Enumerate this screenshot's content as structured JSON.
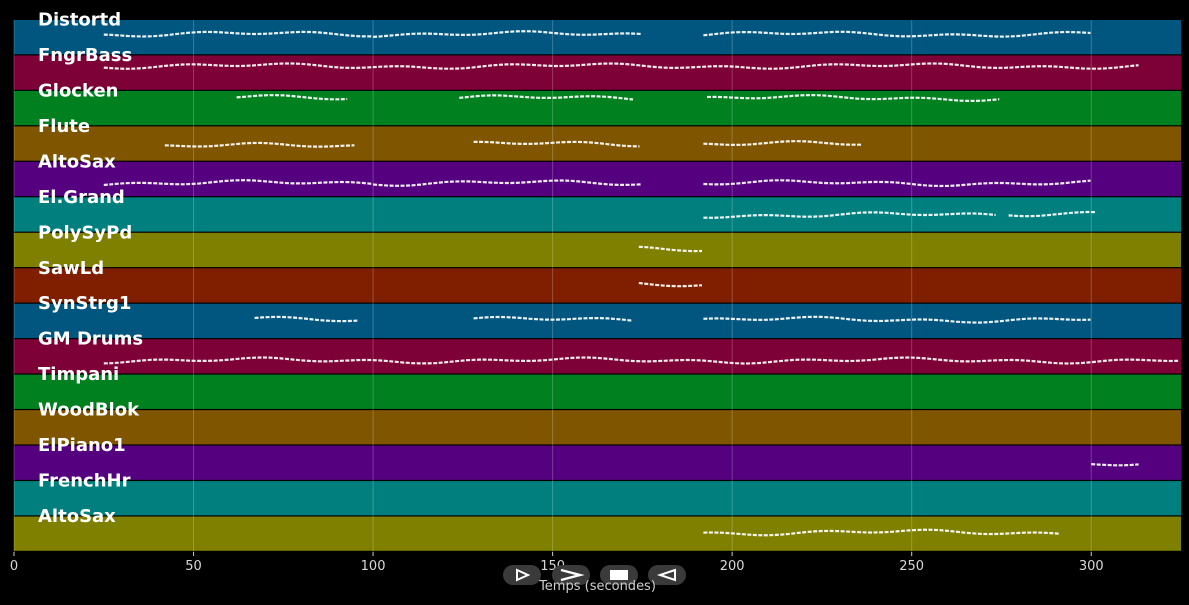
{
  "chart_data": {
    "type": "piano-roll",
    "xlabel": "Temps (secondes)",
    "xlim": [
      0,
      325
    ],
    "x_ticks": [
      0,
      50,
      100,
      150,
      200,
      250,
      300
    ],
    "grid": true,
    "tracks": [
      {
        "name": "Distortd",
        "color": "#00567f",
        "segments": [
          [
            25,
            100,
            0.4
          ],
          [
            100,
            175,
            0.4
          ],
          [
            192,
            300,
            0.4
          ]
        ]
      },
      {
        "name": "FngrBass",
        "color": "#7d0036",
        "segments": [
          [
            25,
            315,
            0.3
          ]
        ]
      },
      {
        "name": "Glocken",
        "color": "#00801f",
        "segments": [
          [
            62,
            95,
            0.2
          ],
          [
            124,
            173,
            0.2
          ],
          [
            193,
            275,
            0.2
          ]
        ]
      },
      {
        "name": "Flute",
        "color": "#7f5500",
        "segments": [
          [
            42,
            97,
            0.55
          ],
          [
            128,
            175,
            0.5
          ],
          [
            192,
            238,
            0.5
          ]
        ]
      },
      {
        "name": "AltoSax",
        "color": "#55007f",
        "segments": [
          [
            25,
            100,
            0.6
          ],
          [
            100,
            175,
            0.6
          ],
          [
            192,
            300,
            0.6
          ]
        ]
      },
      {
        "name": "El.Grand",
        "color": "#007f7f",
        "segments": [
          [
            192,
            275,
            0.5
          ],
          [
            277,
            303,
            0.45
          ]
        ]
      },
      {
        "name": "PolySyPd",
        "color": "#7f7f00",
        "segments": [
          [
            174,
            193,
            0.45
          ]
        ]
      },
      {
        "name": "SawLd",
        "color": "#7f1f00",
        "segments": [
          [
            174,
            193,
            0.45
          ]
        ]
      },
      {
        "name": "SynStrg1",
        "color": "#00567f",
        "segments": [
          [
            67,
            96,
            0.45
          ],
          [
            128,
            174,
            0.45
          ],
          [
            192,
            300,
            0.45
          ]
        ]
      },
      {
        "name": "GM Drums",
        "color": "#7d0036",
        "segments": [
          [
            25,
            325,
            0.6
          ]
        ]
      },
      {
        "name": "Timpani",
        "color": "#00801f",
        "segments": []
      },
      {
        "name": "WoodBlok",
        "color": "#7f5500",
        "segments": []
      },
      {
        "name": "ElPiano1",
        "color": "#55007f",
        "segments": [
          [
            300,
            315,
            0.5
          ]
        ]
      },
      {
        "name": "FrenchHr",
        "color": "#007f7f",
        "segments": []
      },
      {
        "name": "AltoSax",
        "color": "#7f7f00",
        "segments": [
          [
            192,
            292,
            0.45
          ]
        ]
      }
    ]
  },
  "controls": [
    {
      "name": "play-button",
      "icon": "play-icon"
    },
    {
      "name": "fast-forward-button",
      "icon": "fast-forward-icon"
    },
    {
      "name": "stop-button",
      "icon": "stop-icon"
    },
    {
      "name": "rewind-button",
      "icon": "rewind-icon"
    }
  ]
}
